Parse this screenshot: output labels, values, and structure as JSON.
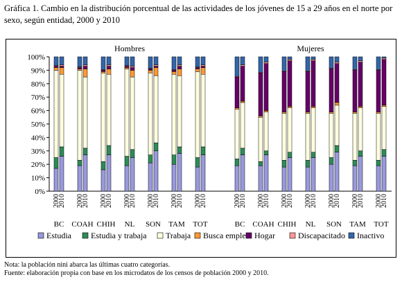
{
  "header": {
    "title": "Gráfica 1. Cambio en la distribución porcentual de las actividades de los jóvenes de 15 a 29 años en el norte por sexo, según entidad, 2000 y 2010"
  },
  "footer": {
    "note": "Nota: la población nini abarca las últimas cuatro categorías.",
    "source": "Fuente: elaboración propia con base en los microdatos de los censos de población 2000 y 2010."
  },
  "chart_data": {
    "type": "bar",
    "stacked": true,
    "ylim": [
      0,
      100
    ],
    "yticks": [
      "0%",
      "10%",
      "20%",
      "30%",
      "40%",
      "50%",
      "60%",
      "70%",
      "80%",
      "90%",
      "100%"
    ],
    "grid": false,
    "legend_position": "bottom",
    "panels": [
      "Hombres",
      "Mujeres"
    ],
    "years": [
      "2000",
      "2010"
    ],
    "entities": [
      "BC",
      "COAH",
      "CHIH",
      "NL",
      "SON",
      "TAM",
      "TOT"
    ],
    "series": [
      {
        "name": "Estudia",
        "color": "#9999dd"
      },
      {
        "name": "Estudia y trabaja",
        "color": "#2e8b57"
      },
      {
        "name": "Trabaja",
        "color": "#ffffe0"
      },
      {
        "name": "Busca empleo",
        "color": "#ff9933"
      },
      {
        "name": "Hogar",
        "color": "#660066"
      },
      {
        "name": "Discapacitado",
        "color": "#ff9999"
      },
      {
        "name": "Inactivo",
        "color": "#3366aa"
      }
    ],
    "bars": [
      {
        "panel": "Hombres",
        "entity": "BC",
        "year": "2000",
        "values": [
          17,
          8,
          65,
          2,
          1,
          0.5,
          6.5
        ]
      },
      {
        "panel": "Hombres",
        "entity": "BC",
        "year": "2010",
        "values": [
          26,
          7,
          54,
          5,
          1,
          1,
          6
        ]
      },
      {
        "panel": "Hombres",
        "entity": "COAH",
        "year": "2000",
        "values": [
          19,
          4,
          67,
          1,
          1,
          0.5,
          7.5
        ]
      },
      {
        "panel": "Hombres",
        "entity": "COAH",
        "year": "2010",
        "values": [
          27,
          5,
          53,
          6,
          2,
          1,
          6
        ]
      },
      {
        "panel": "Hombres",
        "entity": "CHIH",
        "year": "2000",
        "values": [
          16,
          6,
          66,
          1,
          1,
          0.5,
          9.5
        ]
      },
      {
        "panel": "Hombres",
        "entity": "CHIH",
        "year": "2010",
        "values": [
          27,
          7,
          53,
          4,
          2,
          1,
          6
        ]
      },
      {
        "panel": "Hombres",
        "entity": "NL",
        "year": "2000",
        "values": [
          19,
          7,
          65,
          1,
          1,
          0.5,
          6.5
        ]
      },
      {
        "panel": "Hombres",
        "entity": "NL",
        "year": "2010",
        "values": [
          25,
          6,
          54,
          5,
          2,
          1,
          7
        ]
      },
      {
        "panel": "Hombres",
        "entity": "SON",
        "year": "2000",
        "values": [
          21,
          6,
          61,
          2,
          1,
          0.5,
          8.5
        ]
      },
      {
        "panel": "Hombres",
        "entity": "SON",
        "year": "2010",
        "values": [
          30,
          6,
          50,
          6,
          1,
          1,
          6
        ]
      },
      {
        "panel": "Hombres",
        "entity": "TAM",
        "year": "2000",
        "values": [
          20,
          7,
          60,
          2,
          1,
          0.5,
          9.5
        ]
      },
      {
        "panel": "Hombres",
        "entity": "TAM",
        "year": "2010",
        "values": [
          28,
          5,
          53,
          5,
          2,
          1,
          6
        ]
      },
      {
        "panel": "Hombres",
        "entity": "TOT",
        "year": "2000",
        "values": [
          18,
          7,
          64,
          2,
          1,
          0.5,
          7.5
        ]
      },
      {
        "panel": "Hombres",
        "entity": "TOT",
        "year": "2010",
        "values": [
          27,
          6,
          54,
          5,
          1,
          1,
          6
        ]
      },
      {
        "panel": "Mujeres",
        "entity": "BC",
        "year": "2000",
        "values": [
          19,
          5,
          37,
          1,
          23,
          0.5,
          14.5
        ]
      },
      {
        "panel": "Mujeres",
        "entity": "BC",
        "year": "2010",
        "values": [
          27,
          5,
          34,
          1,
          26,
          1,
          6
        ]
      },
      {
        "panel": "Mujeres",
        "entity": "COAH",
        "year": "2000",
        "values": [
          19,
          3,
          33,
          1,
          32,
          0.5,
          11.5
        ]
      },
      {
        "panel": "Mujeres",
        "entity": "COAH",
        "year": "2010",
        "values": [
          27,
          3,
          29,
          1,
          35,
          1,
          4
        ]
      },
      {
        "panel": "Mujeres",
        "entity": "CHIH",
        "year": "2000",
        "values": [
          18,
          5,
          35,
          1,
          30,
          0.5,
          10.5
        ]
      },
      {
        "panel": "Mujeres",
        "entity": "CHIH",
        "year": "2010",
        "values": [
          25,
          4,
          33,
          1,
          34,
          1,
          2
        ]
      },
      {
        "panel": "Mujeres",
        "entity": "NL",
        "year": "2000",
        "values": [
          18,
          5,
          35,
          1,
          30,
          0.5,
          10.5
        ]
      },
      {
        "panel": "Mujeres",
        "entity": "NL",
        "year": "2010",
        "values": [
          25,
          4,
          33,
          1,
          34,
          1,
          2
        ]
      },
      {
        "panel": "Mujeres",
        "entity": "SON",
        "year": "2000",
        "values": [
          20,
          5,
          33,
          1,
          32,
          0.5,
          8.5
        ]
      },
      {
        "panel": "Mujeres",
        "entity": "SON",
        "year": "2010",
        "values": [
          29,
          5,
          30,
          2,
          29,
          1,
          4
        ]
      },
      {
        "panel": "Mujeres",
        "entity": "TAM",
        "year": "2000",
        "values": [
          19,
          4,
          35,
          1,
          31,
          0.5,
          9.5
        ]
      },
      {
        "panel": "Mujeres",
        "entity": "TAM",
        "year": "2010",
        "values": [
          26,
          4,
          32,
          1,
          33,
          1,
          3
        ]
      },
      {
        "panel": "Mujeres",
        "entity": "TOT",
        "year": "2000",
        "values": [
          19,
          4,
          35,
          1,
          31,
          0.5,
          9.5
        ]
      },
      {
        "panel": "Mujeres",
        "entity": "TOT",
        "year": "2010",
        "values": [
          26,
          5,
          32,
          1,
          34,
          1,
          1
        ]
      }
    ]
  }
}
